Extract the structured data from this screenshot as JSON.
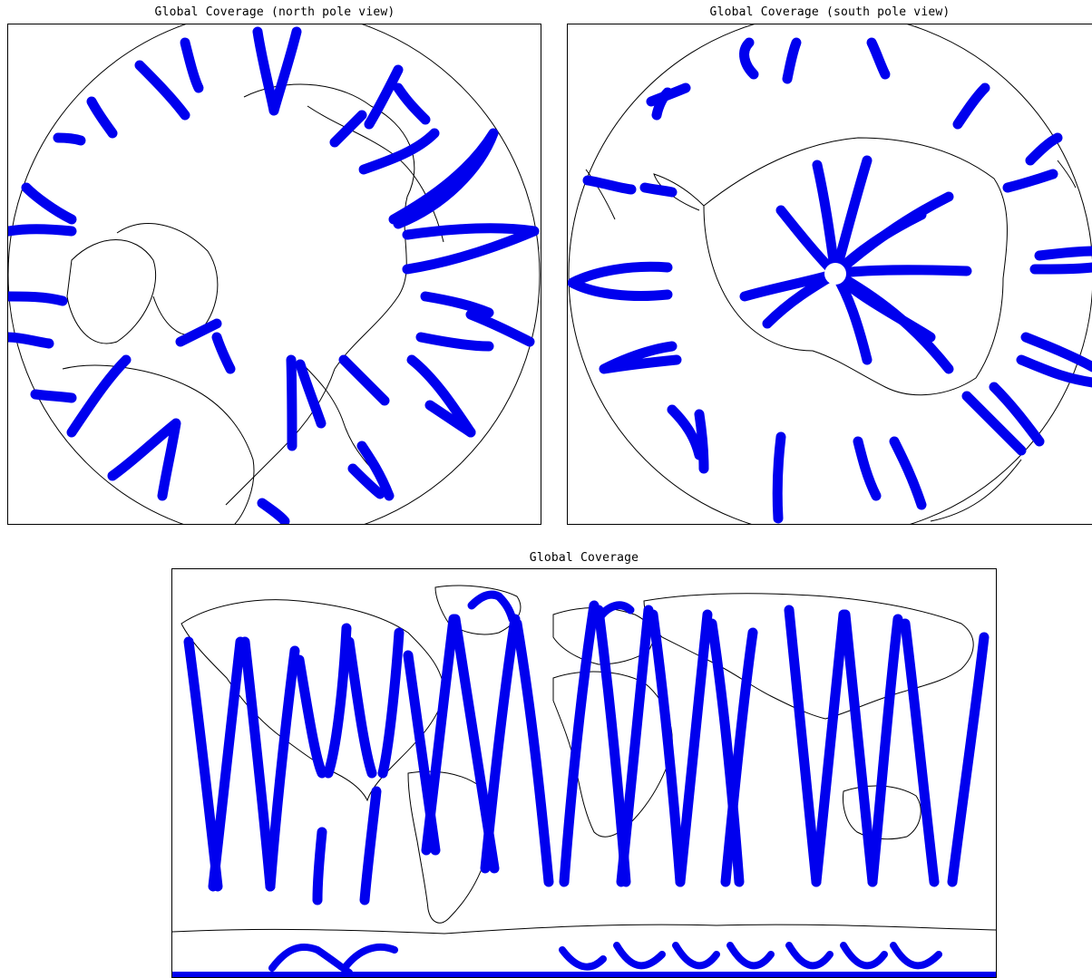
{
  "panels": {
    "north": {
      "title": "Global Coverage (north pole view)"
    },
    "south": {
      "title": "Global Coverage (south pole view)"
    },
    "world": {
      "title": "Global Coverage"
    }
  },
  "colors": {
    "swath": "#0000ee",
    "coastline": "#000000",
    "background": "#ffffff"
  },
  "map_legend": []
}
